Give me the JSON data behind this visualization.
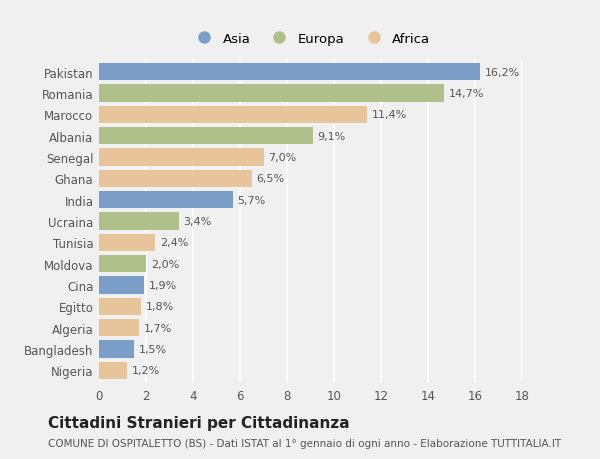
{
  "categories": [
    "Pakistan",
    "Romania",
    "Marocco",
    "Albania",
    "Senegal",
    "Ghana",
    "India",
    "Ucraina",
    "Tunisia",
    "Moldova",
    "Cina",
    "Egitto",
    "Algeria",
    "Bangladesh",
    "Nigeria"
  ],
  "values": [
    16.2,
    14.7,
    11.4,
    9.1,
    7.0,
    6.5,
    5.7,
    3.4,
    2.4,
    2.0,
    1.9,
    1.8,
    1.7,
    1.5,
    1.2
  ],
  "continents": [
    "Asia",
    "Europa",
    "Africa",
    "Europa",
    "Africa",
    "Africa",
    "Asia",
    "Europa",
    "Africa",
    "Europa",
    "Asia",
    "Africa",
    "Africa",
    "Asia",
    "Africa"
  ],
  "labels": [
    "16,2%",
    "14,7%",
    "11,4%",
    "9,1%",
    "7,0%",
    "6,5%",
    "5,7%",
    "3,4%",
    "2,4%",
    "2,0%",
    "1,9%",
    "1,8%",
    "1,7%",
    "1,5%",
    "1,2%"
  ],
  "colors": {
    "Asia": "#7b9ec9",
    "Europa": "#afc08a",
    "Africa": "#e8c49a"
  },
  "legend_labels": [
    "Asia",
    "Europa",
    "Africa"
  ],
  "legend_colors": [
    "#7b9ec9",
    "#afc08a",
    "#e8c49a"
  ],
  "xlim": [
    0,
    18
  ],
  "xticks": [
    0,
    2,
    4,
    6,
    8,
    10,
    12,
    14,
    16,
    18
  ],
  "title": "Cittadini Stranieri per Cittadinanza",
  "subtitle": "COMUNE DI OSPITALETTO (BS) - Dati ISTAT al 1° gennaio di ogni anno - Elaborazione TUTTITALIA.IT",
  "bg_color": "#f0f0f0",
  "plot_bg_color": "#f0f0f0",
  "grid_color": "#ffffff",
  "bar_height": 0.82,
  "label_fontsize": 8.0,
  "ytick_fontsize": 8.5,
  "xtick_fontsize": 8.5,
  "title_fontsize": 11,
  "subtitle_fontsize": 7.5
}
